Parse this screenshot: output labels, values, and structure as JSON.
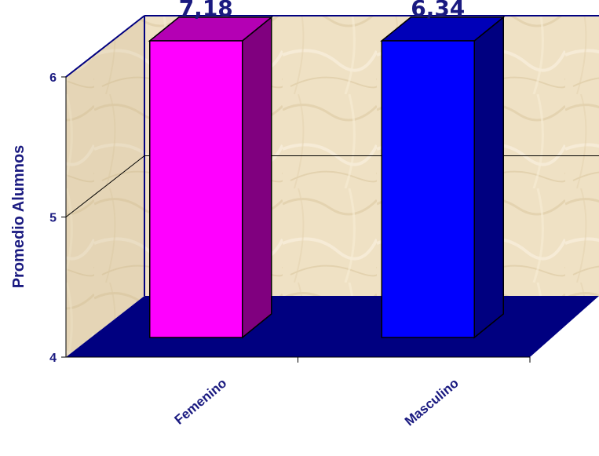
{
  "chart_data": {
    "type": "bar",
    "categories": [
      "Femenino",
      "Masculino"
    ],
    "values": [
      7.18,
      6.34
    ],
    "data_labels": [
      "7,18",
      "6,34"
    ],
    "ylabel": "Promedio Alumnos",
    "xlabel": "",
    "ylim": [
      4,
      6
    ],
    "yticks": [
      4,
      5,
      6
    ],
    "ytick_labels": [
      "4",
      "5",
      "6"
    ],
    "bar_colors": [
      {
        "front": "#ff00ff",
        "side": "#80007f",
        "top": "#b400b4"
      },
      {
        "front": "#0000ff",
        "side": "#000080",
        "top": "#0000b8"
      }
    ],
    "floor_color": "#000080",
    "wall_color": "#eedfc0",
    "text_color": "#1a1a80",
    "grid": true,
    "legend": "none"
  }
}
